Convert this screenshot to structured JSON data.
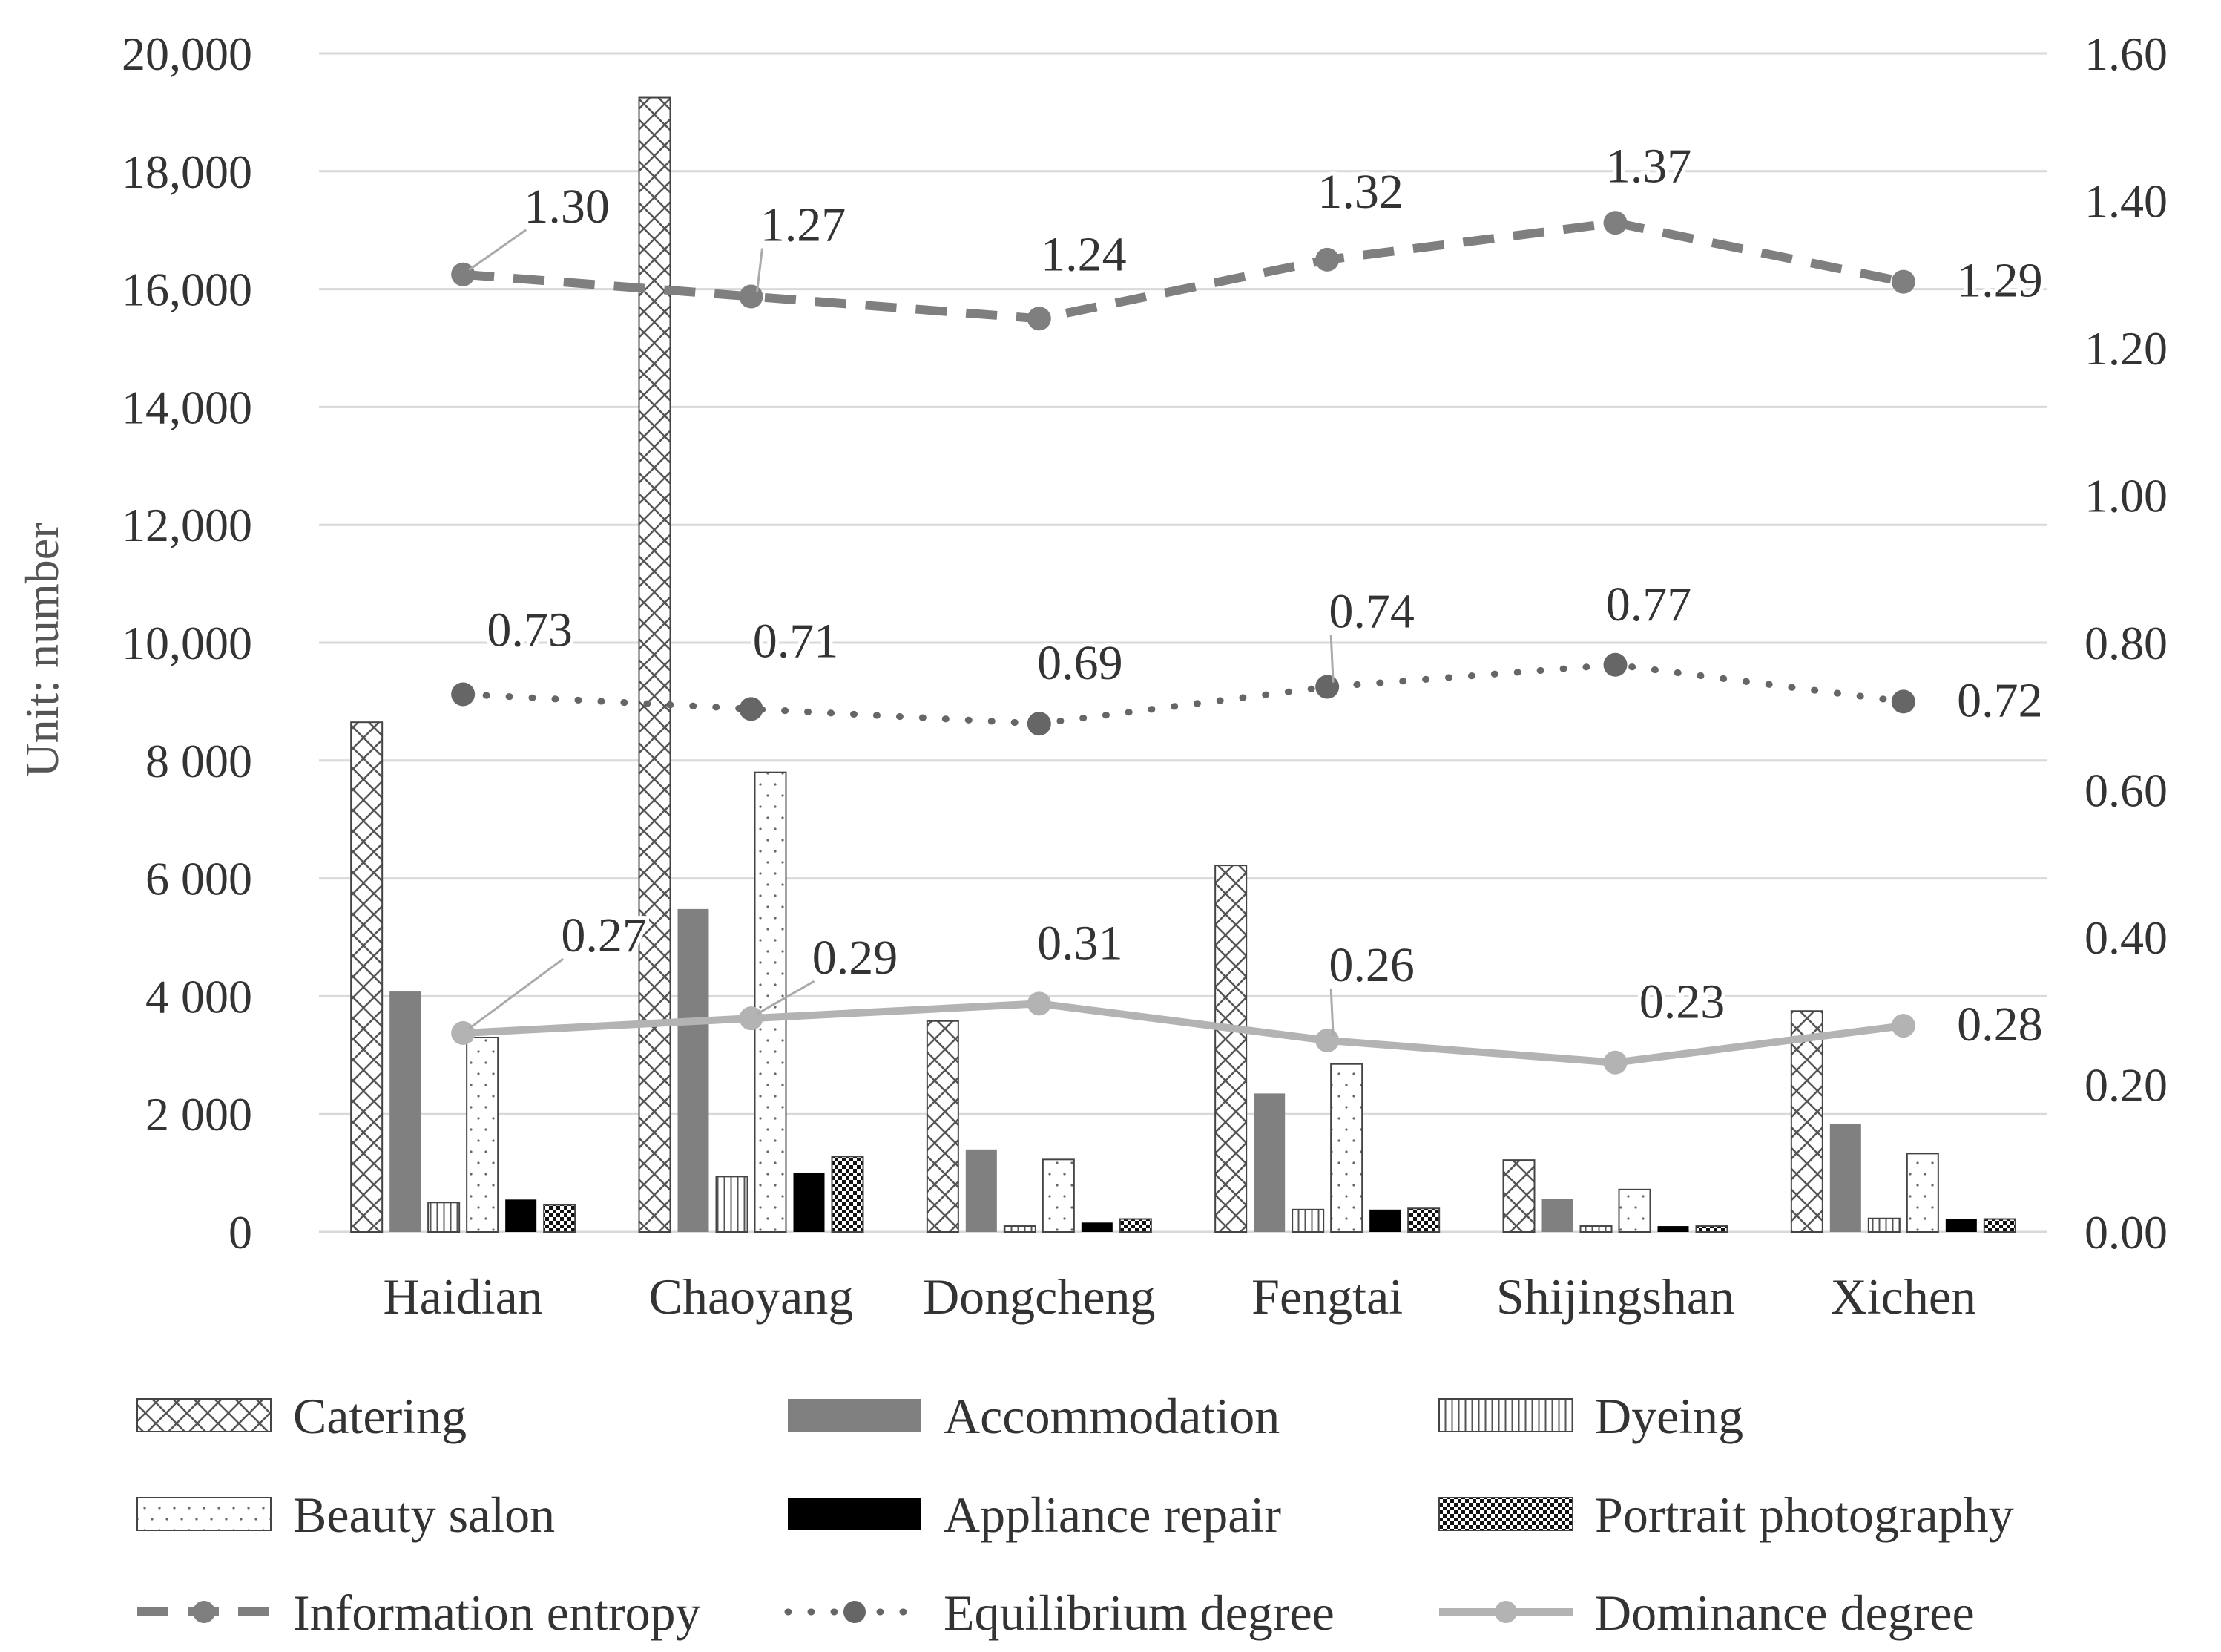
{
  "chart_data": {
    "type": "bar",
    "categories": [
      "Haidian",
      "Chaoyang",
      "Dongcheng",
      "Fengtai",
      "Shijingshan",
      "Xichen"
    ],
    "ylabel": "Unit: number",
    "ylim": [
      0,
      20000
    ],
    "y2lim": [
      0,
      1.6
    ],
    "left_ticks": [
      "0",
      "2 000",
      "4 000",
      "6 000",
      "8 000",
      "10,000",
      "12,000",
      "14,000",
      "16,000",
      "18,000",
      "20,000"
    ],
    "right_ticks": [
      "0.00",
      "0.20",
      "0.40",
      "0.60",
      "0.80",
      "1.00",
      "1.20",
      "1.40",
      "1.60"
    ],
    "grid": true,
    "legend_position": "bottom",
    "bar_series": [
      {
        "name": "Catering",
        "pattern": "crosshatch",
        "values": [
          8650,
          19250,
          3580,
          6220,
          1220,
          3750
        ]
      },
      {
        "name": "Accommodation",
        "pattern": "solid-gray",
        "values": [
          4080,
          5480,
          1400,
          2350,
          560,
          1830
        ]
      },
      {
        "name": "Dyeing",
        "pattern": "vertical-lines",
        "values": [
          500,
          940,
          100,
          380,
          100,
          230
        ]
      },
      {
        "name": "Beauty salon",
        "pattern": "dots",
        "values": [
          3300,
          7800,
          1230,
          2850,
          720,
          1330
        ]
      },
      {
        "name": "Appliance repair",
        "pattern": "solid-black",
        "values": [
          550,
          1000,
          160,
          380,
          100,
          220
        ]
      },
      {
        "name": "Portrait photography",
        "pattern": "checker",
        "values": [
          460,
          1280,
          220,
          400,
          100,
          220
        ]
      }
    ],
    "line_series": [
      {
        "name": "Information entropy",
        "style": "dashed",
        "axis": "right",
        "values": [
          1.3,
          1.27,
          1.24,
          1.32,
          1.37,
          1.29
        ],
        "labels": [
          "1.30",
          "1.27",
          "1.24",
          "1.32",
          "1.37",
          "1.29"
        ]
      },
      {
        "name": "Equilibrium degree",
        "style": "dotted",
        "axis": "right",
        "values": [
          0.73,
          0.71,
          0.69,
          0.74,
          0.77,
          0.72
        ],
        "labels": [
          "0.73",
          "0.71",
          "0.69",
          "0.74",
          "0.77",
          "0.72"
        ]
      },
      {
        "name": "Dominance degree",
        "style": "solid-light",
        "axis": "right",
        "values": [
          0.27,
          0.29,
          0.31,
          0.26,
          0.23,
          0.28
        ],
        "labels": [
          "0.27",
          "0.29",
          "0.31",
          "0.26",
          "0.23",
          "0.28"
        ]
      }
    ],
    "colors": {
      "bar_gray": "#808080",
      "grid": "#d9d9d9",
      "entropy_line": "#7f7f7f",
      "equilibrium_line": "#666666",
      "dominance_line": "#b3b3b3",
      "text": "#333333"
    }
  }
}
